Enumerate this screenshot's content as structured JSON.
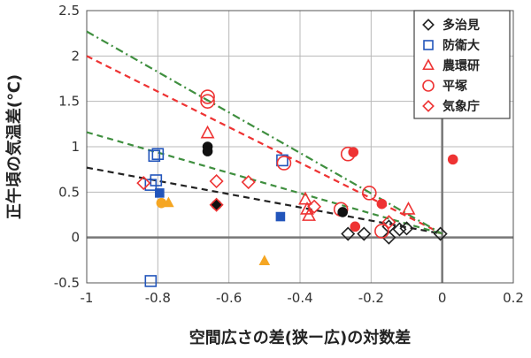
{
  "chart_data": {
    "type": "scatter",
    "title": "",
    "xlabel": "空間広さの差(狭ー広)の対数差",
    "ylabel": "正午頃の気温差(℃)",
    "xlim": [
      -1,
      0.2
    ],
    "ylim": [
      -0.5,
      2.5
    ],
    "x_ticks": [
      "-1",
      "-0.8",
      "-0.6",
      "-0.4",
      "-0.2",
      "0",
      "0.2"
    ],
    "y_ticks": [
      "-0.5",
      "0",
      "0.5",
      "1",
      "1.5",
      "2",
      "2.5"
    ],
    "x_tick_values": [
      -1,
      -0.8,
      -0.6,
      -0.4,
      -0.2,
      0,
      0.2
    ],
    "y_tick_values": [
      -0.5,
      0,
      0.5,
      1,
      1.5,
      2,
      2.5
    ],
    "grid": true,
    "legend_position": "top-right",
    "series": [
      {
        "name": "多治見",
        "marker": "diamond",
        "color": "#222222",
        "points": [
          {
            "x": -0.265,
            "y": 0.04,
            "filled": false
          },
          {
            "x": -0.22,
            "y": 0.04,
            "filled": false
          },
          {
            "x": -0.15,
            "y": 0.0,
            "filled": false
          },
          {
            "x": -0.15,
            "y": 0.12,
            "filled": false
          },
          {
            "x": -0.12,
            "y": 0.09,
            "filled": false
          },
          {
            "x": -0.1,
            "y": 0.1,
            "filled": false
          },
          {
            "x": -0.005,
            "y": 0.04,
            "filled": false
          }
        ]
      },
      {
        "name": "防衛大",
        "marker": "square",
        "color": "#2255bb",
        "points": [
          {
            "x": -0.81,
            "y": 0.9,
            "filled": false
          },
          {
            "x": -0.8,
            "y": 0.92,
            "filled": false
          },
          {
            "x": -0.805,
            "y": 0.63,
            "filled": false
          },
          {
            "x": -0.82,
            "y": 0.58,
            "filled": false
          },
          {
            "x": -0.82,
            "y": -0.48,
            "filled": false
          },
          {
            "x": -0.45,
            "y": 0.85,
            "filled": false
          },
          {
            "x": -0.795,
            "y": 0.49,
            "filled": true
          },
          {
            "x": -0.455,
            "y": 0.23,
            "filled": true
          }
        ]
      },
      {
        "name": "農環研",
        "marker": "triangle",
        "color": "#ee3333",
        "points": [
          {
            "x": -0.66,
            "y": 1.15,
            "filled": false
          },
          {
            "x": -0.385,
            "y": 0.42,
            "filled": false
          },
          {
            "x": -0.38,
            "y": 0.31,
            "filled": false
          },
          {
            "x": -0.375,
            "y": 0.24,
            "filled": false
          },
          {
            "x": -0.095,
            "y": 0.31,
            "filled": false
          },
          {
            "x": -0.77,
            "y": 0.38,
            "filled": true,
            "fill": "#f5a623"
          },
          {
            "x": -0.5,
            "y": -0.26,
            "filled": true,
            "fill": "#f5a623"
          }
        ]
      },
      {
        "name": "平塚",
        "marker": "circle",
        "color": "#ee3333",
        "points": [
          {
            "x": -0.66,
            "y": 1.55,
            "filled": false
          },
          {
            "x": -0.66,
            "y": 1.5,
            "filled": false
          },
          {
            "x": -0.445,
            "y": 0.82,
            "filled": false
          },
          {
            "x": -0.265,
            "y": 0.92,
            "filled": false
          },
          {
            "x": -0.205,
            "y": 0.49,
            "filled": false
          },
          {
            "x": -0.285,
            "y": 0.31,
            "filled": false
          },
          {
            "x": -0.17,
            "y": 0.07,
            "filled": false
          },
          {
            "x": -0.25,
            "y": 0.94,
            "filled": true
          },
          {
            "x": -0.17,
            "y": 0.37,
            "filled": true
          },
          {
            "x": -0.245,
            "y": 0.12,
            "filled": true
          },
          {
            "x": 0.03,
            "y": 0.86,
            "filled": true
          },
          {
            "x": -0.79,
            "y": 0.38,
            "filled": true,
            "fill": "#f5a623"
          },
          {
            "x": -0.66,
            "y": 1.0,
            "filled": true,
            "fill": "#111111"
          },
          {
            "x": -0.66,
            "y": 0.95,
            "filled": true,
            "fill": "#111111"
          },
          {
            "x": -0.635,
            "y": 0.36,
            "filled": true,
            "fill": "#111111"
          },
          {
            "x": -0.28,
            "y": 0.28,
            "filled": true,
            "fill": "#111111"
          }
        ]
      },
      {
        "name": "気象庁",
        "marker": "diamond",
        "color": "#ee3333",
        "points": [
          {
            "x": -0.84,
            "y": 0.6,
            "filled": false
          },
          {
            "x": -0.635,
            "y": 0.62,
            "filled": false
          },
          {
            "x": -0.545,
            "y": 0.61,
            "filled": false
          },
          {
            "x": -0.635,
            "y": 0.36,
            "filled": false
          },
          {
            "x": -0.36,
            "y": 0.34,
            "filled": false
          },
          {
            "x": -0.15,
            "y": 0.17,
            "filled": false
          }
        ]
      }
    ],
    "trend_lines": [
      {
        "color": "#222222",
        "style": "dash",
        "x": [
          -1,
          0
        ],
        "y": [
          0.77,
          0.04
        ]
      },
      {
        "color": "#3f8f3f",
        "style": "dash",
        "x": [
          -1,
          0
        ],
        "y": [
          1.16,
          0.04
        ]
      },
      {
        "color": "#ee3333",
        "style": "dash",
        "x": [
          -1,
          0
        ],
        "y": [
          2.0,
          0.04
        ]
      },
      {
        "color": "#3f8f3f",
        "style": "dashdot",
        "x": [
          -1,
          0
        ],
        "y": [
          2.27,
          0.04
        ]
      }
    ]
  }
}
